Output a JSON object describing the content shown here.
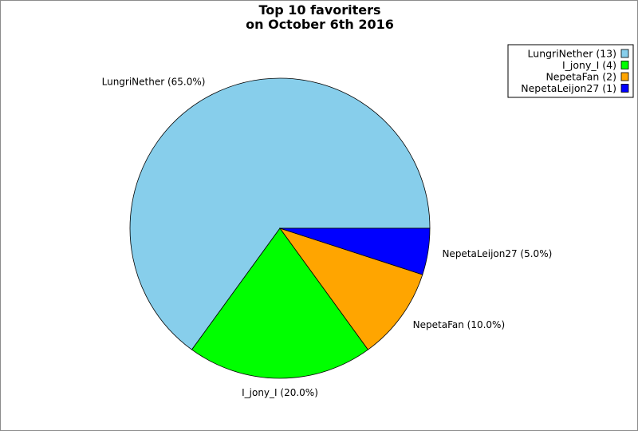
{
  "chart_data": {
    "type": "pie",
    "title": [
      "Top 10 favoriters",
      "on October 6th 2016"
    ],
    "slices": [
      {
        "name": "LungriNether",
        "value": 13,
        "percent_label": "LungriNether (65.0%)",
        "legend_label": "LungriNether (13)",
        "color": "#87ceeb"
      },
      {
        "name": "I_jony_I",
        "value": 4,
        "percent_label": "I_jony_I (20.0%)",
        "legend_label": "I_jony_I (4)",
        "color": "#00ff00"
      },
      {
        "name": "NepetaFan",
        "value": 2,
        "percent_label": "NepetaFan (10.0%)",
        "legend_label": "NepetaFan (2)",
        "color": "#ffa500"
      },
      {
        "name": "NepetaLeijon27",
        "value": 1,
        "percent_label": "NepetaLeijon27 (5.0%)",
        "legend_label": "NepetaLeijon27 (1)",
        "color": "#0000ff"
      }
    ],
    "start_angle_deg": 0,
    "direction": "counterclockwise",
    "legend_placement": "top-right"
  }
}
